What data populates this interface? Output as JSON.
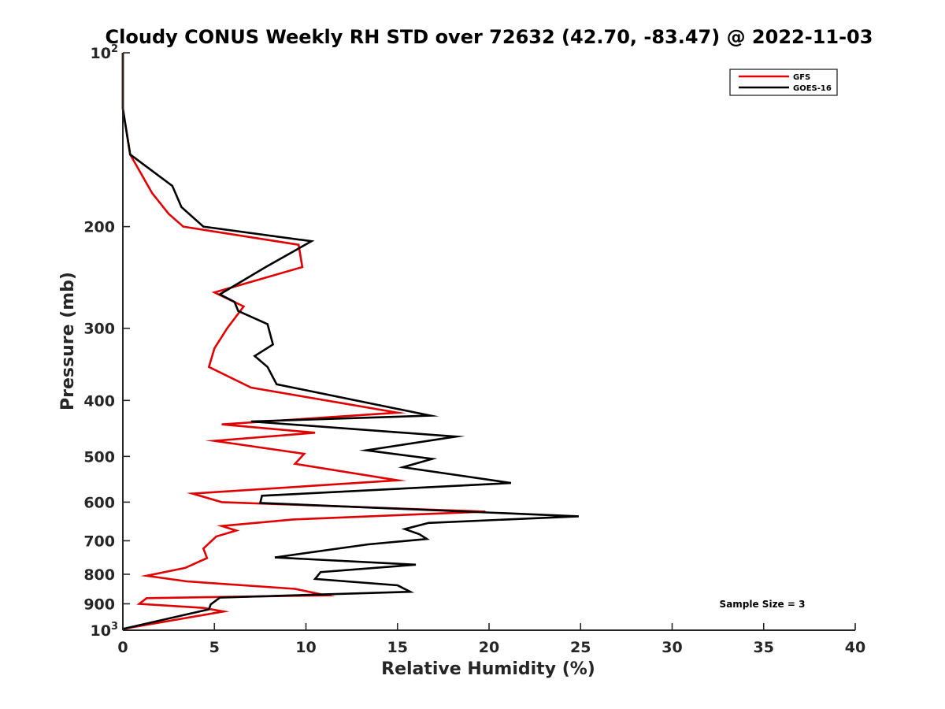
{
  "chart_data": {
    "type": "line",
    "title": "Cloudy CONUS Weekly RH STD over 72632 (42.70, -83.47) @ 2022-11-03",
    "xlabel": "Relative Humidity (%)",
    "ylabel": "Pressure (mb)",
    "xlim": [
      0,
      40
    ],
    "ylim": [
      100,
      1000
    ],
    "y_scale": "log",
    "y_reversed": true,
    "x_ticks": [
      0,
      5,
      10,
      15,
      20,
      25,
      30,
      35,
      40
    ],
    "x_tick_labels": [
      "0",
      "5",
      "10",
      "15",
      "20",
      "25",
      "30",
      "35",
      "40"
    ],
    "y_ticks": [
      {
        "value": 100,
        "label": "10",
        "sup": "2"
      },
      {
        "value": 200,
        "label": "200",
        "sup": ""
      },
      {
        "value": 300,
        "label": "300",
        "sup": ""
      },
      {
        "value": 400,
        "label": "400",
        "sup": ""
      },
      {
        "value": 500,
        "label": "500",
        "sup": ""
      },
      {
        "value": 600,
        "label": "600",
        "sup": ""
      },
      {
        "value": 700,
        "label": "700",
        "sup": ""
      },
      {
        "value": 800,
        "label": "800",
        "sup": ""
      },
      {
        "value": 900,
        "label": "900",
        "sup": ""
      },
      {
        "value": 1000,
        "label": "10",
        "sup": "3"
      }
    ],
    "legend_position": "top-right",
    "grid": false,
    "annotation": "Sample Size = 3",
    "series": [
      {
        "name": "GFS",
        "color": "#e00000",
        "points": [
          [
            0.0,
            100
          ],
          [
            0.0,
            125
          ],
          [
            0.4,
            150
          ],
          [
            1.6,
            175
          ],
          [
            2.5,
            190
          ],
          [
            3.3,
            200
          ],
          [
            9.6,
            215
          ],
          [
            9.8,
            235
          ],
          [
            5.0,
            260
          ],
          [
            6.6,
            275
          ],
          [
            5.7,
            300
          ],
          [
            5.0,
            325
          ],
          [
            4.7,
            350
          ],
          [
            7.0,
            380
          ],
          [
            15.0,
            420
          ],
          [
            5.4,
            440
          ],
          [
            10.5,
            455
          ],
          [
            5.0,
            470
          ],
          [
            9.9,
            495
          ],
          [
            9.4,
            515
          ],
          [
            15.0,
            550
          ],
          [
            3.8,
            580
          ],
          [
            5.4,
            600
          ],
          [
            19.8,
            623
          ],
          [
            9.3,
            643
          ],
          [
            5.4,
            660
          ],
          [
            6.2,
            672
          ],
          [
            5.1,
            688
          ],
          [
            4.4,
            722
          ],
          [
            4.6,
            750
          ],
          [
            3.4,
            780
          ],
          [
            1.3,
            805
          ],
          [
            3.5,
            823
          ],
          [
            9.4,
            848
          ],
          [
            11.1,
            870
          ],
          [
            1.3,
            880
          ],
          [
            0.9,
            900
          ],
          [
            4.4,
            915
          ],
          [
            5.5,
            928
          ],
          [
            0.0,
            995
          ]
        ]
      },
      {
        "name": "GOES-16",
        "color": "#000000",
        "points": [
          [
            0.0,
            100
          ],
          [
            0.0,
            125
          ],
          [
            0.4,
            150
          ],
          [
            2.7,
            170
          ],
          [
            3.2,
            185
          ],
          [
            4.4,
            200
          ],
          [
            10.3,
            212
          ],
          [
            7.8,
            235
          ],
          [
            5.3,
            262
          ],
          [
            6.1,
            270
          ],
          [
            6.3,
            280
          ],
          [
            7.9,
            295
          ],
          [
            8.2,
            320
          ],
          [
            7.2,
            335
          ],
          [
            7.9,
            350
          ],
          [
            8.4,
            375
          ],
          [
            16.8,
            425
          ],
          [
            7.0,
            435
          ],
          [
            18.2,
            462
          ],
          [
            13.3,
            488
          ],
          [
            16.9,
            505
          ],
          [
            15.3,
            522
          ],
          [
            21.2,
            556
          ],
          [
            7.6,
            585
          ],
          [
            7.5,
            602
          ],
          [
            24.9,
            635
          ],
          [
            16.7,
            652
          ],
          [
            15.4,
            668
          ],
          [
            16.2,
            682
          ],
          [
            16.6,
            695
          ],
          [
            13.4,
            710
          ],
          [
            8.3,
            748
          ],
          [
            16.0,
            770
          ],
          [
            10.8,
            793
          ],
          [
            10.5,
            815
          ],
          [
            15.0,
            836
          ],
          [
            15.7,
            858
          ],
          [
            5.3,
            878
          ],
          [
            4.8,
            902
          ],
          [
            4.7,
            920
          ],
          [
            0.0,
            995
          ]
        ]
      }
    ]
  }
}
